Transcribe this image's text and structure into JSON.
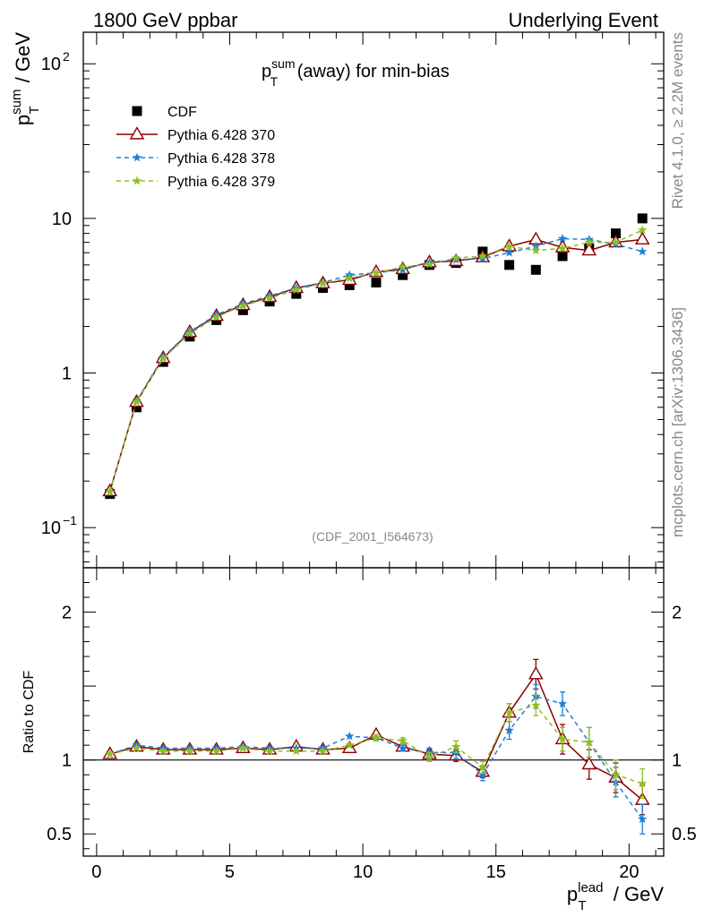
{
  "header": {
    "left": "1800 GeV ppbar",
    "right": "Underlying Event"
  },
  "side": {
    "rivet": "Rivet 4.1.0, ≥ 2.2M events",
    "mcplots": "mcplots.cern.ch [arXiv:1306.3436]"
  },
  "chart_data": {
    "type": "scatter",
    "title": "p_T^sum (away) for min-bias",
    "title_main": "p",
    "title_sup": "sum",
    "title_sub": "T",
    "title_rest": " (away) for min-bias",
    "analysis_id": "(CDF_2001_I564673)",
    "ylabel": "p_T^sum / GeV",
    "ylabel_main": "p",
    "ylabel_sup": "sum",
    "ylabel_sub": "T",
    "ylabel_rest": " / GeV",
    "ratio_ylabel": "Ratio to CDF",
    "xlabel": "p_T^lead / GeV",
    "xlabel_main": "p",
    "xlabel_sup": "lead",
    "xlabel_sub": "T",
    "xlabel_rest": " / GeV",
    "yscale": "log",
    "ylim": [
      0.055,
      160
    ],
    "ratio_ylim": [
      0.35,
      2.3
    ],
    "xlim": [
      -0.5,
      21.3
    ],
    "xticks": [
      0,
      5,
      10,
      15,
      20
    ],
    "xtick_labels": [
      "0",
      "5",
      "10",
      "15",
      "20"
    ],
    "yticks_main": [
      0.1,
      1,
      10,
      100
    ],
    "ytick_labels_main": {
      "base": [
        "10",
        "1",
        "10",
        "10"
      ],
      "exp": [
        "−1",
        "",
        "",
        "2"
      ]
    },
    "yticks_ratio": [
      0.5,
      1,
      2
    ],
    "ytick_labels_ratio": [
      "0.5",
      "1",
      "2"
    ],
    "x": [
      0.5,
      1.5,
      2.5,
      3.5,
      4.5,
      5.5,
      6.5,
      7.5,
      8.5,
      9.5,
      10.5,
      11.5,
      12.5,
      13.5,
      14.5,
      15.5,
      16.5,
      17.5,
      18.5,
      19.5,
      20.5
    ],
    "series": [
      {
        "name": "CDF",
        "style": "data",
        "color": "#000000",
        "values": [
          0.165,
          0.6,
          1.18,
          1.72,
          2.2,
          2.55,
          2.9,
          3.25,
          3.55,
          3.7,
          3.85,
          4.3,
          5.0,
          5.15,
          6.1,
          5.0,
          4.65,
          5.7,
          6.4,
          8.0,
          10.0
        ]
      },
      {
        "name": "Pythia 6.428 370",
        "style": "triangle",
        "color": "#8b0000",
        "dash": "",
        "values": [
          0.172,
          0.65,
          1.25,
          1.84,
          2.34,
          2.75,
          3.1,
          3.55,
          3.8,
          4.0,
          4.5,
          4.7,
          5.2,
          5.3,
          5.6,
          6.6,
          7.3,
          6.5,
          6.2,
          7.0,
          7.3
        ],
        "ratio": [
          1.04,
          1.09,
          1.07,
          1.07,
          1.07,
          1.08,
          1.07,
          1.09,
          1.07,
          1.08,
          1.17,
          1.09,
          1.04,
          1.03,
          0.92,
          1.32,
          1.58,
          1.14,
          0.97,
          0.88,
          0.73
        ],
        "ratio_err": [
          0.01,
          0.01,
          0.01,
          0.01,
          0.01,
          0.01,
          0.01,
          0.01,
          0.01,
          0.01,
          0.02,
          0.02,
          0.03,
          0.04,
          0.04,
          0.06,
          0.1,
          0.1,
          0.1,
          0.1,
          0.1
        ]
      },
      {
        "name": "Pythia 6.428 378",
        "style": "star",
        "color": "#1e7fd7",
        "dash": "5,4",
        "values": [
          0.171,
          0.66,
          1.27,
          1.85,
          2.38,
          2.8,
          3.15,
          3.55,
          3.85,
          4.3,
          4.45,
          4.65,
          5.2,
          5.4,
          5.5,
          6.0,
          6.6,
          7.4,
          7.3,
          6.8,
          6.1
        ],
        "ratio": [
          1.04,
          1.1,
          1.08,
          1.08,
          1.08,
          1.09,
          1.08,
          1.08,
          1.08,
          1.16,
          1.15,
          1.08,
          1.05,
          1.05,
          0.9,
          1.2,
          1.43,
          1.38,
          1.12,
          0.85,
          0.6
        ],
        "ratio_err": [
          0.01,
          0.01,
          0.01,
          0.01,
          0.01,
          0.01,
          0.01,
          0.01,
          0.01,
          0.01,
          0.02,
          0.02,
          0.03,
          0.04,
          0.04,
          0.06,
          0.08,
          0.08,
          0.1,
          0.1,
          0.1
        ]
      },
      {
        "name": "Pythia 6.428 379",
        "style": "star",
        "color": "#8fbf1f",
        "dash": "5,4",
        "values": [
          0.171,
          0.65,
          1.24,
          1.8,
          2.3,
          2.73,
          3.05,
          3.45,
          3.8,
          4.1,
          4.45,
          4.85,
          5.05,
          5.55,
          5.7,
          6.6,
          6.2,
          6.4,
          7.0,
          7.0,
          8.4
        ],
        "ratio": [
          1.04,
          1.08,
          1.06,
          1.06,
          1.06,
          1.08,
          1.06,
          1.06,
          1.06,
          1.1,
          1.15,
          1.13,
          1.02,
          1.09,
          0.95,
          1.32,
          1.37,
          1.14,
          1.12,
          0.9,
          0.84
        ],
        "ratio_err": [
          0.01,
          0.01,
          0.01,
          0.01,
          0.01,
          0.01,
          0.01,
          0.01,
          0.01,
          0.01,
          0.02,
          0.02,
          0.03,
          0.04,
          0.04,
          0.06,
          0.07,
          0.08,
          0.1,
          0.1,
          0.1
        ]
      }
    ]
  }
}
